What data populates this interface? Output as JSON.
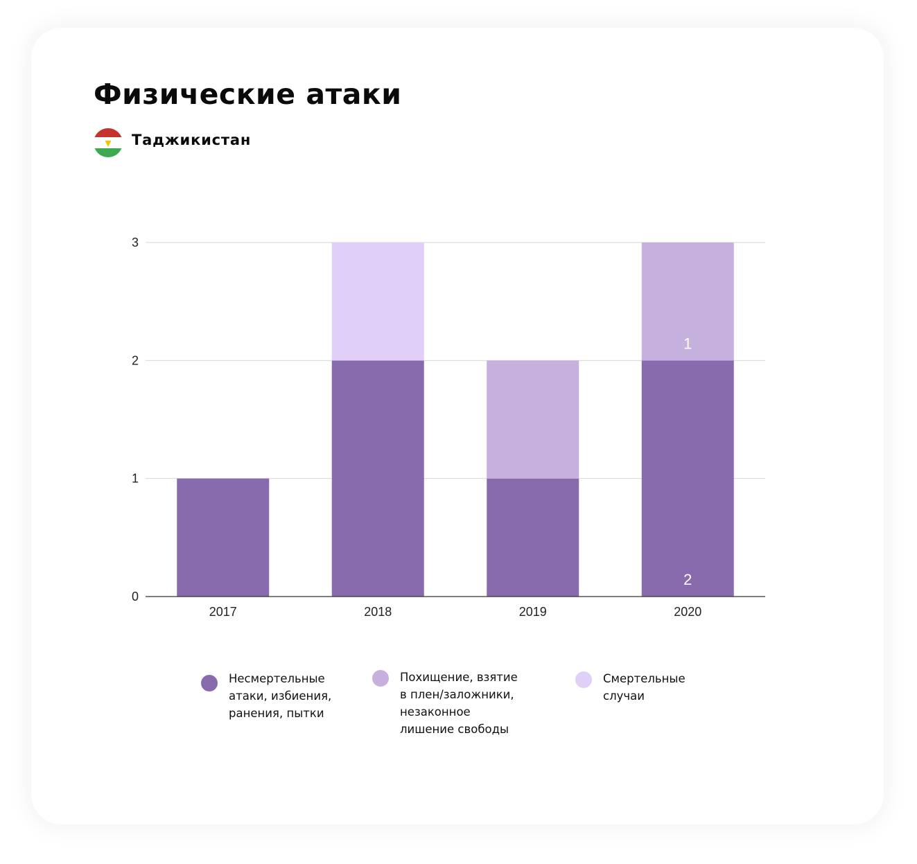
{
  "title": "Физические атаки",
  "country": "Таджикистан",
  "flag": {
    "red": "#C6322E",
    "white": "#FFFFFF",
    "green": "#3DAA52",
    "emblem": "#F4C300"
  },
  "chart_data": {
    "type": "bar",
    "stacked": true,
    "categories": [
      "2017",
      "2018",
      "2019",
      "2020"
    ],
    "series": [
      {
        "name": "Несмертельные\nатаки, избиения,\nранения, пытки",
        "color": "#886BAC",
        "values": [
          1,
          2,
          1,
          2
        ]
      },
      {
        "name": "Похищение, взятие\nв плен/заложники,\nнезаконное\nлишение свободы",
        "color": "#C5B0DE",
        "values": [
          0,
          0,
          1,
          1
        ]
      },
      {
        "name": "Смертельные\nслучаи",
        "color": "#E0D0F7",
        "values": [
          0,
          1,
          0,
          0
        ]
      }
    ],
    "ylim": [
      0,
      3
    ],
    "yticks": [
      "0",
      "1",
      "2",
      "3"
    ],
    "data_labels": [
      {
        "category": "2020",
        "series": 0,
        "text": "2"
      },
      {
        "category": "2020",
        "series": 1,
        "text": "1"
      }
    ],
    "grid": true,
    "legend_position": "bottom"
  }
}
